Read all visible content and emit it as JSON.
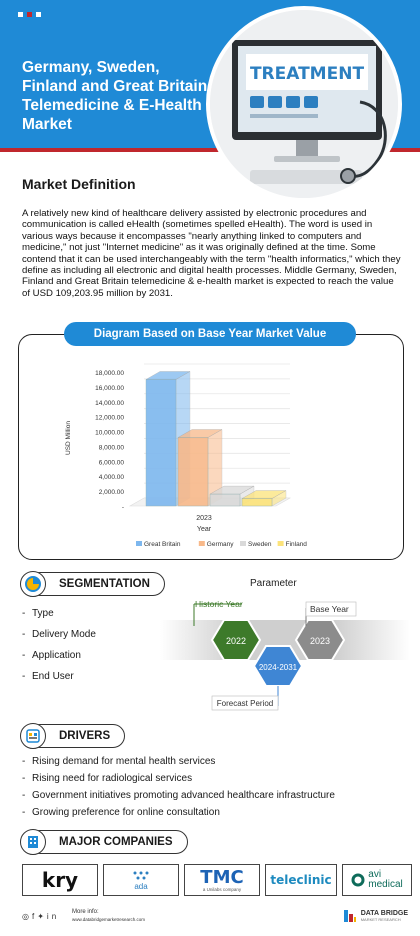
{
  "header": {
    "title": "Germany, Sweden, Finland and Great Britain Telemedicine & E-Health Market",
    "hero_sign": "TREATMENT",
    "dots": [
      "#ffffff",
      "#c0272d",
      "#ffffff"
    ]
  },
  "definition": {
    "heading": "Market Definition",
    "body": "A relatively new kind of healthcare delivery assisted by electronic procedures and communication is called eHealth (sometimes spelled eHealth). The word is used in various ways because it encompasses \"nearly anything linked to computers and medicine,\" not just \"Internet medicine\" as it was originally defined at the time. Some contend that it can be used interchangeably with the term \"health informatics,\" which they define as including all electronic and digital health processes. Middle Germany, Sweden, Finland and Great Britain telemedicine & e-health market is expected to reach the value of USD 109,203.95 million by 2031."
  },
  "chart_heading": "Diagram Based on Base Year Market Value",
  "chart_data": {
    "type": "bar",
    "categories": [
      "2023"
    ],
    "xlabel": "Year",
    "ylabel": "USD Million",
    "ylim": [
      0,
      18000
    ],
    "yticks": [
      "18,000.00",
      "16,000.00",
      "14,000.00",
      "12,000.00",
      "10,000.00",
      "8,000.00",
      "6,000.00",
      "4,000.00",
      "2,000.00",
      "-"
    ],
    "grid": true,
    "legend": "bottom",
    "series": [
      {
        "name": "Great Britain",
        "values": [
          17000
        ],
        "color": "#7db7ee"
      },
      {
        "name": "Germany",
        "values": [
          9200
        ],
        "color": "#f8b98a"
      },
      {
        "name": "Sweden",
        "values": [
          1600
        ],
        "color": "#d9d9d9"
      },
      {
        "name": "Finland",
        "values": [
          1000
        ],
        "color": "#fce37a"
      }
    ]
  },
  "segmentation": {
    "label": "SEGMENTATION",
    "items": [
      "Type",
      "Delivery Mode",
      "Application",
      "End User"
    ]
  },
  "parameter": {
    "title": "Parameter",
    "historic_label": "Historic Year",
    "historic_value": "2022",
    "base_label": "Base Year",
    "base_value": "2023",
    "forecast_label": "Forecast Period",
    "forecast_value": "2024-2031"
  },
  "drivers": {
    "label": "DRIVERS",
    "items": [
      "Rising demand for mental health services",
      "Rising need for radiological services",
      "Government initiatives promoting advanced healthcare infrastructure",
      "Growing preference for online consultation"
    ]
  },
  "companies": {
    "label": "MAJOR COMPANIES",
    "logos": [
      "kry",
      "ada",
      "TMC",
      "a Unilabs company",
      "teleclinic",
      "avi",
      "medical"
    ]
  },
  "footer": {
    "more_info": "More info:",
    "url": "www.databridgemarketresearch.com",
    "brand": "DATA BRIDGE",
    "brand_sub": "MARKET RESEARCH"
  },
  "colors": {
    "primary": "#1f8ad6",
    "accent": "#c0272d",
    "historic": "#3d7a2a",
    "base": "#8c8c8c",
    "forecast": "#3f86d4"
  }
}
